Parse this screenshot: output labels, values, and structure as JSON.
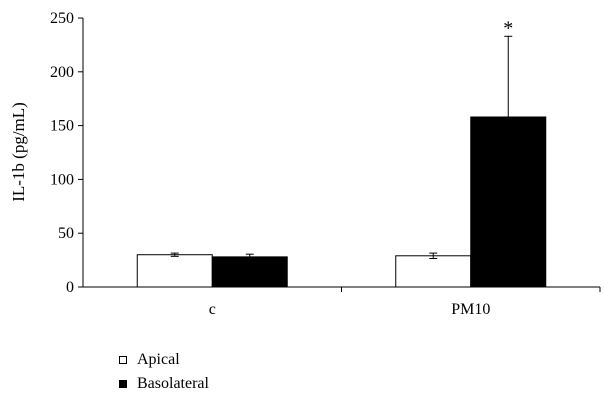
{
  "chart_data": {
    "type": "bar",
    "ylabel": "IL-1b (pg/mL)",
    "xlabel": "",
    "categories": [
      "c",
      "PM10"
    ],
    "ylim": [
      0,
      250
    ],
    "yticks": [
      0,
      50,
      100,
      150,
      200,
      250
    ],
    "series": [
      {
        "name": "Apical",
        "color": "#ffffff",
        "values": [
          30,
          29
        ],
        "errors": [
          1.5,
          2.5
        ]
      },
      {
        "name": "Basolateral",
        "color": "#000000",
        "values": [
          28,
          158
        ],
        "errors": [
          2.5,
          75
        ]
      }
    ],
    "annotations": [
      {
        "category": "PM10",
        "series": "Basolateral",
        "text": "*"
      }
    ],
    "legend_position": "bottom-left",
    "grid": false
  }
}
